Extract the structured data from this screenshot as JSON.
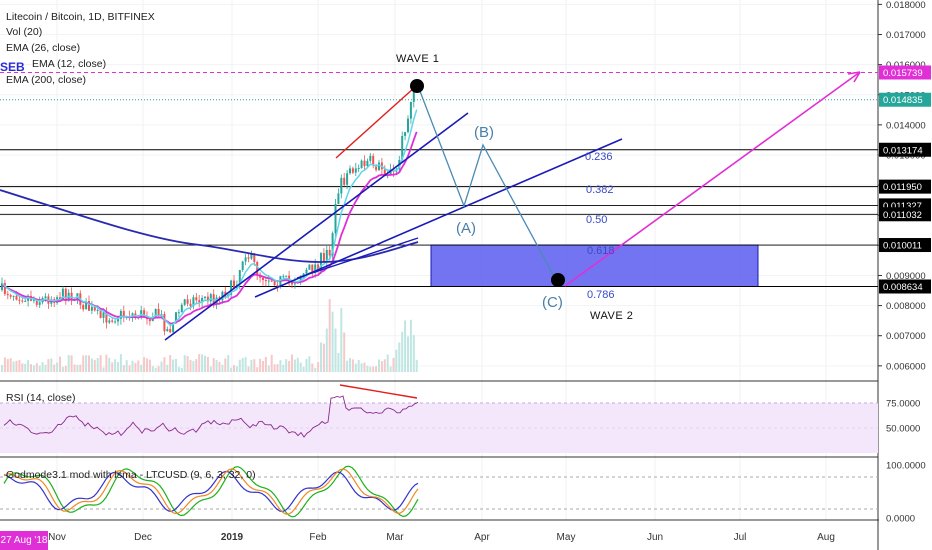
{
  "header": {
    "title": "Litecoin / Bitcoin, 1D, BITFINEX",
    "indicators": [
      "Vol (20)",
      "EMA (26, close)",
      "EMA (12, close)",
      "EMA (200, close)"
    ],
    "watermark": "SEB"
  },
  "colors": {
    "price_line": "#e12fd7",
    "trend": "#1a1ab8",
    "wave": "#4a8ab5",
    "zone": "#5a5cf0",
    "rsi": "#8a2a8a"
  },
  "chart_data": [
    {
      "type": "candlestick",
      "title": "Litecoin / Bitcoin, 1D, BITFINEX",
      "x_ticks": [
        "Nov",
        "Dec",
        "2019",
        "Feb",
        "Mar",
        "Apr",
        "May",
        "Jun",
        "Jul",
        "Aug"
      ],
      "y_ticks": [
        "0.018000",
        "0.017000",
        "0.016000",
        "0.015000",
        "0.014000",
        "0.013000",
        "0.012000",
        "0.011000",
        "0.010000",
        "0.009000",
        "0.008000",
        "0.007000",
        "0.006000"
      ],
      "ylim": [
        0.0055,
        0.0182
      ],
      "price_levels": [
        {
          "value": 0.015739,
          "label": "0.015739",
          "color": "#e12fd7"
        },
        {
          "value": 0.014835,
          "label": "0.014835",
          "color": "#26a69a"
        },
        {
          "value": 0.013174,
          "label": "0.013174",
          "color": "#000000"
        },
        {
          "value": 0.01195,
          "label": "0.011950",
          "color": "#000000"
        },
        {
          "value": 0.011327,
          "label": "0.011327",
          "color": "#000000"
        },
        {
          "value": 0.011032,
          "label": "0.011032",
          "color": "#000000"
        },
        {
          "value": 0.010011,
          "label": "0.010011",
          "color": "#000000"
        },
        {
          "value": 0.008634,
          "label": "0.008634",
          "color": "#000000"
        }
      ],
      "fib_levels": [
        {
          "ratio": "0.236",
          "value": 0.01295
        },
        {
          "ratio": "0.382",
          "value": 0.012
        },
        {
          "ratio": "0.50",
          "value": 0.0112
        },
        {
          "ratio": "0.618",
          "value": 0.00985
        },
        {
          "ratio": "0.786",
          "value": 0.0084
        }
      ],
      "annotations": [
        {
          "text": "WAVE 1",
          "value": 0.01527
        },
        {
          "text": "(B)",
          "value": 0.0141
        },
        {
          "text": "(A)",
          "value": 0.011
        },
        {
          "text": "(C)",
          "value": 0.00825
        },
        {
          "text": "WAVE 2",
          "value": 0.00785
        }
      ]
    },
    {
      "type": "line",
      "title": "RSI (14, close)",
      "y_ticks": [
        "75.0000",
        "50.0000"
      ],
      "ylim": [
        35,
        85
      ]
    },
    {
      "type": "line",
      "title": "Godmode3.1 mod with lsma - LTCUSD (9, 6, 3, 32, 0)",
      "y_ticks": [
        "100.0000",
        "0.0000"
      ],
      "ylim": [
        -10,
        105
      ]
    }
  ],
  "date_badge": "27 Aug '18"
}
